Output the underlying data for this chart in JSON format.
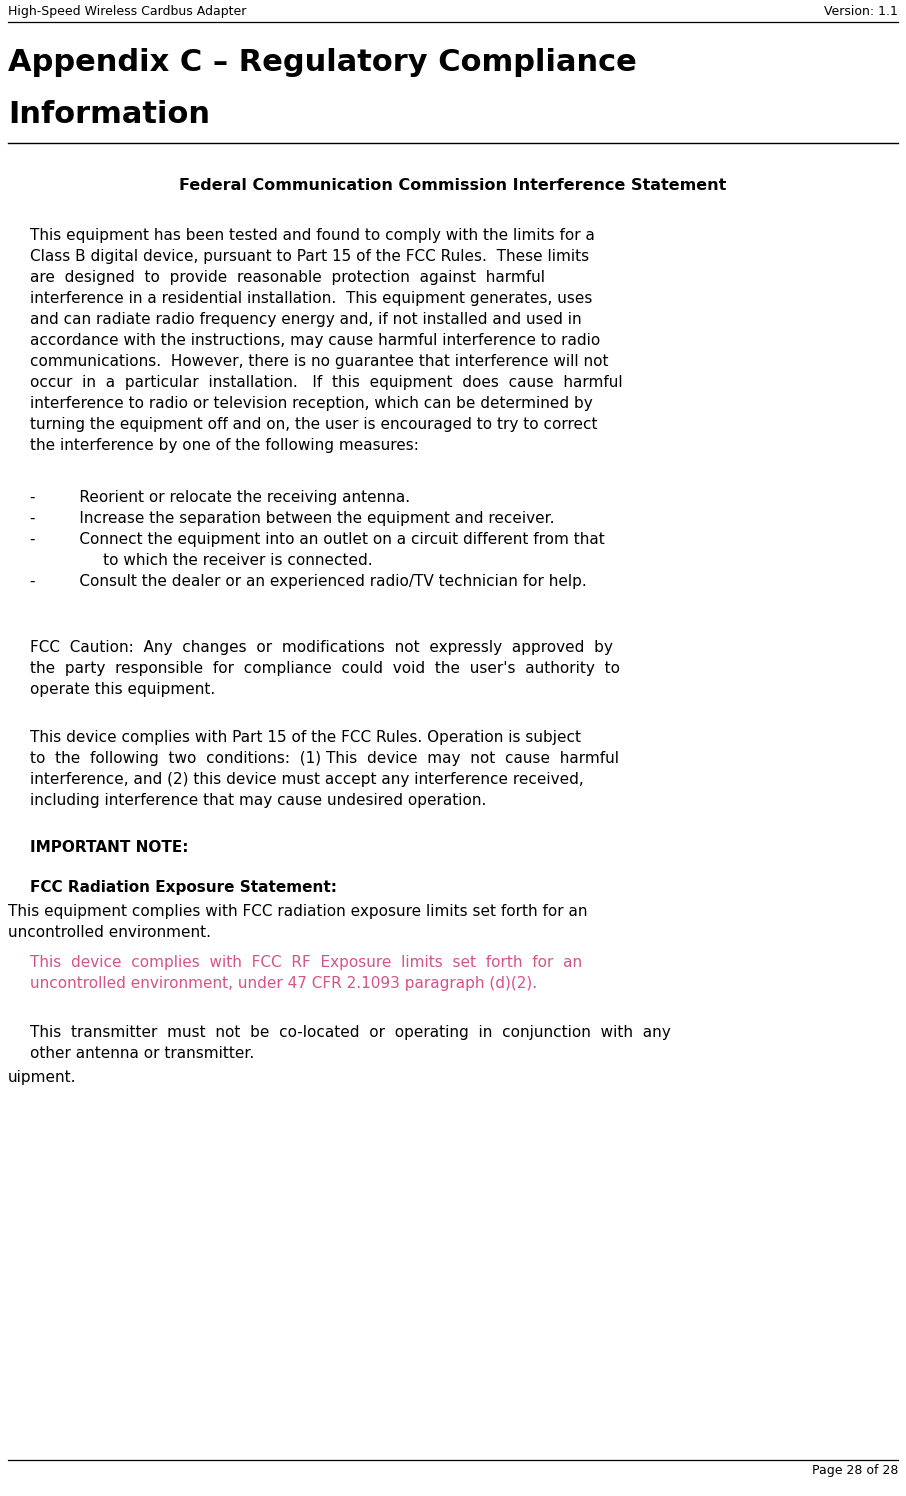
{
  "header_left": "High-Speed Wireless Cardbus Adapter",
  "header_right": "Version: 1.1",
  "footer_right": "Page 28 of 28",
  "title_line1": "Appendix C – Regulatory Compliance",
  "title_line2": "Information",
  "section_heading": "Federal Communication Commission Interference Statement",
  "body_para1_lines": [
    "This equipment has been tested and found to comply with the limits for a",
    "Class B digital device, pursuant to Part 15 of the FCC Rules.  These limits",
    "are  designed  to  provide  reasonable  protection  against  harmful",
    "interference in a residential installation.  This equipment generates, uses",
    "and can radiate radio frequency energy and, if not installed and used in",
    "accordance with the instructions, may cause harmful interference to radio",
    "communications.  However, there is no guarantee that interference will not",
    "occur  in  a  particular  installation.   If  this  equipment  does  cause  harmful",
    "interference to radio or television reception, which can be determined by",
    "turning the equipment off and on, the user is encouraged to try to correct",
    "the interference by one of the following measures:"
  ],
  "bullet1": "-         Reorient or relocate the receiving antenna.",
  "bullet2": "-         Increase the separation between the equipment and receiver.",
  "bullet3a": "-         Connect the equipment into an outlet on a circuit different from that",
  "bullet3b": "               to which the receiver is connected.",
  "bullet4": "-         Consult the dealer or an experienced radio/TV technician for help.",
  "fcc_caution_lines": [
    "FCC  Caution:  Any  changes  or  modifications  not  expressly  approved  by",
    "the  party  responsible  for  compliance  could  void  the  user's  authority  to",
    "operate this equipment."
  ],
  "device_complies_lines": [
    "This device complies with Part 15 of the FCC Rules. Operation is subject",
    "to  the  following  two  conditions:  (1) This  device  may  not  cause  harmful",
    "interference, and (2) this device must accept any interference received,",
    "including interference that may cause undesired operation."
  ],
  "important_note": "IMPORTANT NOTE:",
  "fcc_radiation_label": "FCC Radiation Exposure Statement:",
  "fcc_radiation_body_lines": [
    "This equipment complies with FCC radiation exposure limits set forth for an",
    "uncontrolled environment."
  ],
  "pink_lines": [
    "This  device  complies  with  FCC  RF  Exposure  limits  set  forth  for  an",
    "uncontrolled environment, under 47 CFR 2.1093 paragraph (d)(2)."
  ],
  "last_para_lines": [
    "This  transmitter  must  not  be  co-located  or  operating  in  conjunction  with  any",
    "other antenna or transmitter."
  ],
  "last_word": "uipment.",
  "bg_color": "#ffffff",
  "text_color": "#000000",
  "pink_color": "#d4538a",
  "header_font_size": 9,
  "title_font_size": 22,
  "section_heading_font_size": 11.5,
  "body_font_size": 11,
  "important_font_size": 11
}
